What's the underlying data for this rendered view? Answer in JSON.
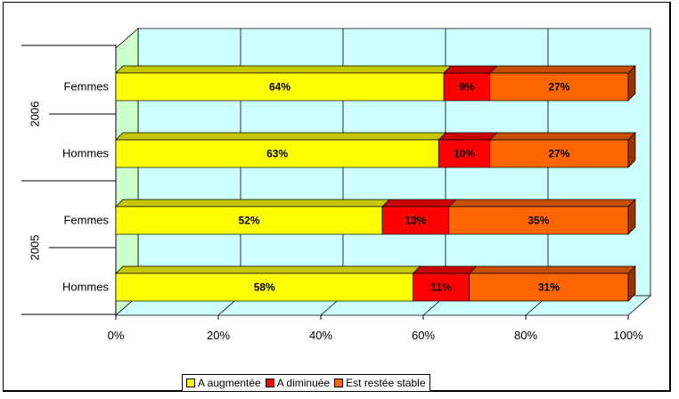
{
  "chart_data": {
    "type": "bar",
    "orientation": "horizontal",
    "stacked": "percent",
    "groups": [
      "2006",
      "2005"
    ],
    "categories": [
      {
        "group": "2006",
        "label": "Femmes"
      },
      {
        "group": "2006",
        "label": "Hommes"
      },
      {
        "group": "2005",
        "label": "Femmes"
      },
      {
        "group": "2005",
        "label": "Hommes"
      }
    ],
    "series": [
      {
        "name": "A augmentée",
        "color": "#FFFF00",
        "values": [
          64,
          63,
          52,
          58
        ],
        "labels": [
          "64%",
          "63%",
          "52%",
          "58%"
        ]
      },
      {
        "name": "A diminuée",
        "color": "#FF0000",
        "values": [
          9,
          10,
          13,
          11
        ],
        "labels": [
          "9%",
          "10%",
          "13%",
          "11%"
        ]
      },
      {
        "name": "Est restée stable",
        "color": "#FF6600",
        "values": [
          27,
          27,
          35,
          31
        ],
        "labels": [
          "27%",
          "27%",
          "35%",
          "31%"
        ]
      }
    ],
    "xlim": [
      0,
      100
    ],
    "xticks": [
      "0%",
      "20%",
      "40%",
      "60%",
      "80%",
      "100%"
    ],
    "grid": true,
    "legend": "bottom",
    "title": "",
    "xlabel": "",
    "ylabel": ""
  }
}
